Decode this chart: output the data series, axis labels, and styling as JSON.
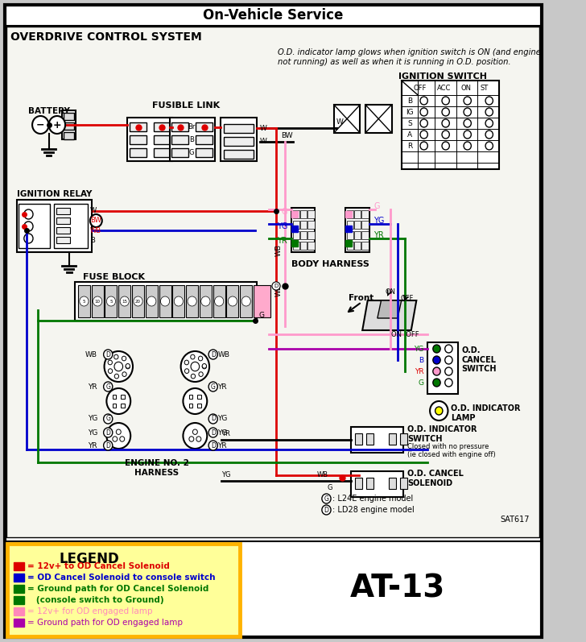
{
  "title_top": "On-Vehicle Service",
  "title_sub": "OVERDRIVE CONTROL SYSTEM",
  "note_text": "O.D. indicator lamp glows when ignition switch is ON (and engine\nnot running) as well as when it is running in O.D. position.",
  "page_ref": "AT-13",
  "diagram_ref": "SAT617",
  "bg_outer": "#c8c8c8",
  "bg_white": "#ffffff",
  "bg_content": "#f5f5f0",
  "legend_bg": "#FFFF99",
  "legend_border": "#FFB300",
  "colors": {
    "red": "#DD0000",
    "blue": "#0000CC",
    "green": "#007700",
    "pink": "#FF99CC",
    "purple": "#AA00AA",
    "black": "#000000"
  },
  "legend_items": [
    {
      "color": "#DD0000",
      "text": "= 12v+ to OD Cancel Solenoid",
      "bold": true
    },
    {
      "color": "#0000CC",
      "text": "= OD Cancel Solenoid to console switch",
      "bold": true
    },
    {
      "color": "#007700",
      "text": "= Ground path for OD Cancel Solenoid",
      "bold": true
    },
    {
      "color": "#007700",
      "text": "   (console switch to Ground)",
      "bold": true
    },
    {
      "color": "#FF88BB",
      "text": "= 12v+ for OD engaged lamp",
      "bold": false
    },
    {
      "color": "#AA00AA",
      "text": "= Ground path for OD engaged lamp",
      "bold": false
    }
  ]
}
